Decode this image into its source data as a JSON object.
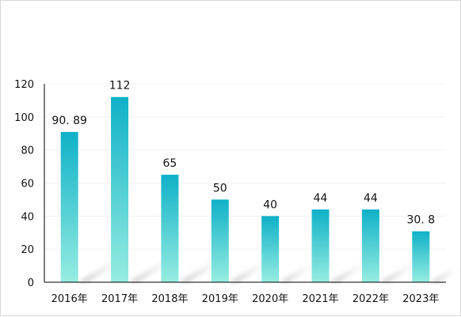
{
  "chart_data": {
    "type": "bar",
    "categories": [
      "2016年",
      "2017年",
      "2018年",
      "2019年",
      "2020年",
      "2021年",
      "2022年",
      "2023年"
    ],
    "values": [
      90.89,
      112,
      65,
      50,
      40,
      44,
      44,
      30.8
    ],
    "data_labels": [
      "90. 89",
      "112",
      "65",
      "50",
      "40",
      "44",
      "44",
      "30. 8"
    ],
    "title": "",
    "xlabel": "",
    "ylabel": "",
    "ylim": [
      0,
      120
    ],
    "yticks": [
      "0",
      "20",
      "40",
      "60",
      "80",
      "100",
      "120"
    ],
    "grid": true,
    "legend": "none",
    "colors": {
      "bar_top": "#0fb1c8",
      "bar_bottom": "#96ede1",
      "axis": "#000000",
      "grid": "#f0f0f0",
      "shadow": "#b8b8b8"
    }
  }
}
